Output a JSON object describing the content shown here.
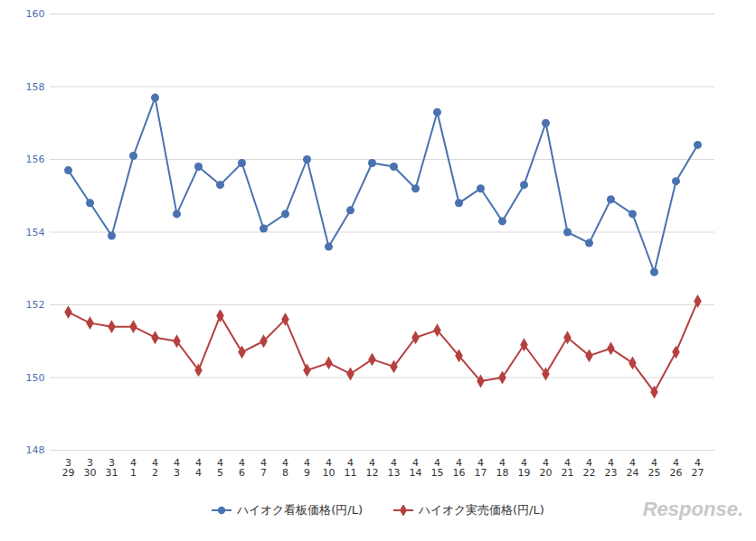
{
  "chart_data": {
    "type": "line",
    "categories": [
      "3\n29",
      "3\n30",
      "3\n31",
      "4\n1",
      "4\n2",
      "4\n3",
      "4\n4",
      "4\n5",
      "4\n6",
      "4\n7",
      "4\n8",
      "4\n9",
      "4\n10",
      "4\n11",
      "4\n12",
      "4\n13",
      "4\n14",
      "4\n15",
      "4\n16",
      "4\n17",
      "4\n18",
      "4\n19",
      "4\n20",
      "4\n21",
      "4\n22",
      "4\n23",
      "4\n24",
      "4\n25",
      "4\n26",
      "4\n27"
    ],
    "series": [
      {
        "name": "ハイオク看板価格(円/L)",
        "color": "#4a72b0",
        "marker": "circle",
        "values": [
          155.7,
          154.8,
          153.9,
          156.1,
          157.7,
          154.5,
          155.8,
          155.3,
          155.9,
          154.1,
          154.5,
          156.0,
          153.6,
          154.6,
          155.9,
          155.8,
          155.2,
          157.3,
          154.8,
          155.2,
          154.3,
          155.3,
          157.0,
          154.0,
          153.7,
          154.9,
          154.5,
          152.9,
          155.4,
          156.4
        ]
      },
      {
        "name": "ハイオク実売価格(円/L)",
        "color": "#b5403f",
        "marker": "diamond",
        "values": [
          151.8,
          151.5,
          151.4,
          151.4,
          151.1,
          151.0,
          150.2,
          151.7,
          150.7,
          151.0,
          151.6,
          150.2,
          150.4,
          150.1,
          150.5,
          150.3,
          151.1,
          151.3,
          150.6,
          149.9,
          150.0,
          150.9,
          150.1,
          151.1,
          150.6,
          150.8,
          150.4,
          149.6,
          150.7,
          152.1
        ]
      }
    ],
    "ylim": [
      148,
      160
    ],
    "yticks": [
      148,
      150,
      152,
      154,
      156,
      158,
      160
    ],
    "grid": true,
    "legend": "bottom",
    "annotations": [
      {
        "text": "Response."
      }
    ]
  }
}
